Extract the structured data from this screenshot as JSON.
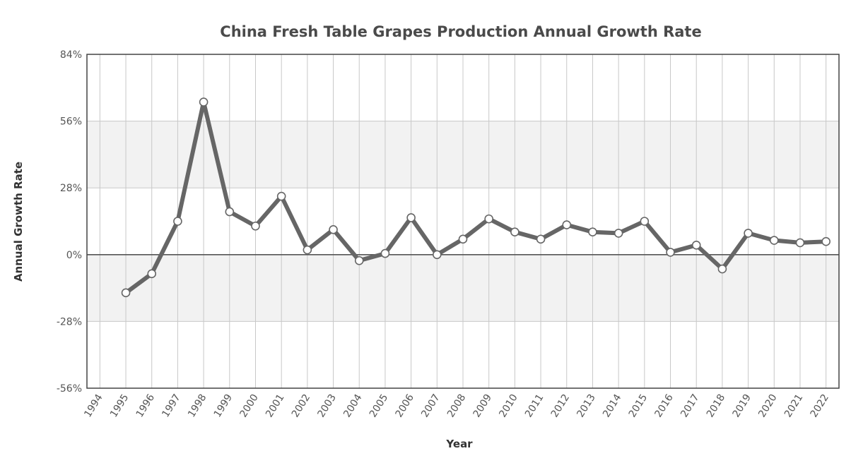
{
  "chart_data": {
    "type": "line",
    "title": "China Fresh Table Grapes Production Annual Growth Rate",
    "xlabel": "Year",
    "ylabel": "Annual Growth Rate",
    "categories": [
      "1994",
      "1995",
      "1996",
      "1997",
      "1998",
      "1999",
      "2000",
      "2001",
      "2002",
      "2003",
      "2004",
      "2005",
      "2006",
      "2007",
      "2008",
      "2009",
      "2010",
      "2011",
      "2012",
      "2013",
      "2014",
      "2015",
      "2016",
      "2017",
      "2018",
      "2019",
      "2020",
      "2021",
      "2022"
    ],
    "series": [
      {
        "x": [
          "1995",
          "1996",
          "1997",
          "1998",
          "1999",
          "2000",
          "2001",
          "2002",
          "2003",
          "2004",
          "2005",
          "2006",
          "2007",
          "2008",
          "2009",
          "2010",
          "2011",
          "2012",
          "2013",
          "2014",
          "2015",
          "2016",
          "2017",
          "2018",
          "2019",
          "2020",
          "2021",
          "2022"
        ],
        "values": [
          -16,
          -8,
          14,
          64,
          18,
          12,
          24.5,
          2,
          10.5,
          -2.5,
          0.5,
          15.5,
          0,
          6.5,
          15,
          9.5,
          6.5,
          12.5,
          9.5,
          9,
          14,
          1,
          4,
          -6,
          9,
          6,
          5,
          5.5
        ]
      }
    ],
    "yticks": [
      "84%",
      "56%",
      "28%",
      "0%",
      "-28%",
      "-56%"
    ],
    "ylim": [
      -56,
      84
    ],
    "grid": true,
    "legend": "none",
    "colors": {
      "line": "#666666",
      "marker_fill": "#ffffff",
      "marker_stroke": "#666666",
      "grid": "#c8c8c8",
      "plot_border": "#444444",
      "band": "#f2f2f2"
    }
  }
}
